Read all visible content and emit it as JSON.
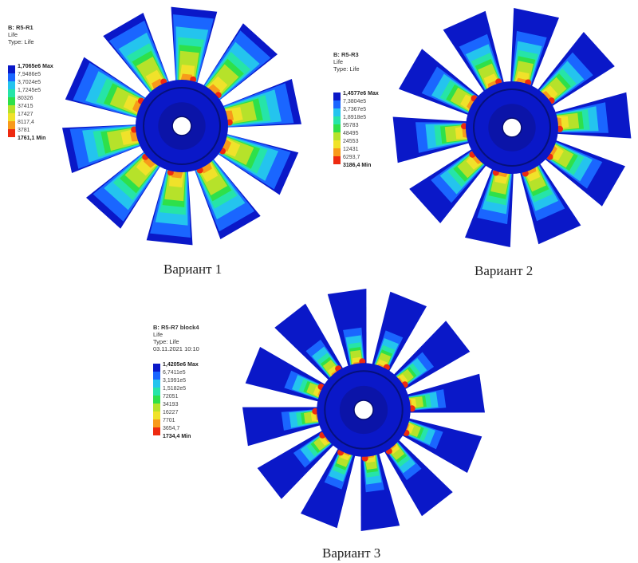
{
  "colors": [
    "#0a18c8",
    "#1a66ff",
    "#24c4ee",
    "#26e4a8",
    "#2ee04a",
    "#b6e22a",
    "#f0e22a",
    "#f89a1a",
    "#ee2a10"
  ],
  "panels": [
    {
      "id": "variant-1",
      "caption": "Вариант 1",
      "legend_header": [
        "B: R5-R1",
        "Life",
        "Type: Life"
      ],
      "legend_labels": [
        "1,7065e6 Max",
        "7,9486e5",
        "3,7024e5",
        "1,7245e5",
        "80326",
        "37415",
        "17427",
        "8117,4",
        "3781",
        "1761,1 Min"
      ]
    },
    {
      "id": "variant-2",
      "caption": "Вариант 2",
      "legend_header": [
        "B: R5-R3",
        "Life",
        "Type: Life"
      ],
      "legend_labels": [
        "1,4577e6 Max",
        "7,3804e5",
        "3,7367e5",
        "1,8918e5",
        "95783",
        "48495",
        "24553",
        "12431",
        "6293,7",
        "3186,4 Min"
      ]
    },
    {
      "id": "variant-3",
      "caption": "Вариант 3",
      "legend_header": [
        "B: R5-R7 block4",
        "Life",
        "Type: Life",
        "03.11.2021 10:10"
      ],
      "legend_labels": [
        "1,4205e6 Max",
        "6,7411e5",
        "3,1991e5",
        "1,5182e5",
        "72051",
        "34193",
        "16227",
        "7701",
        "3654,7",
        "1734,4 Min"
      ]
    }
  ]
}
